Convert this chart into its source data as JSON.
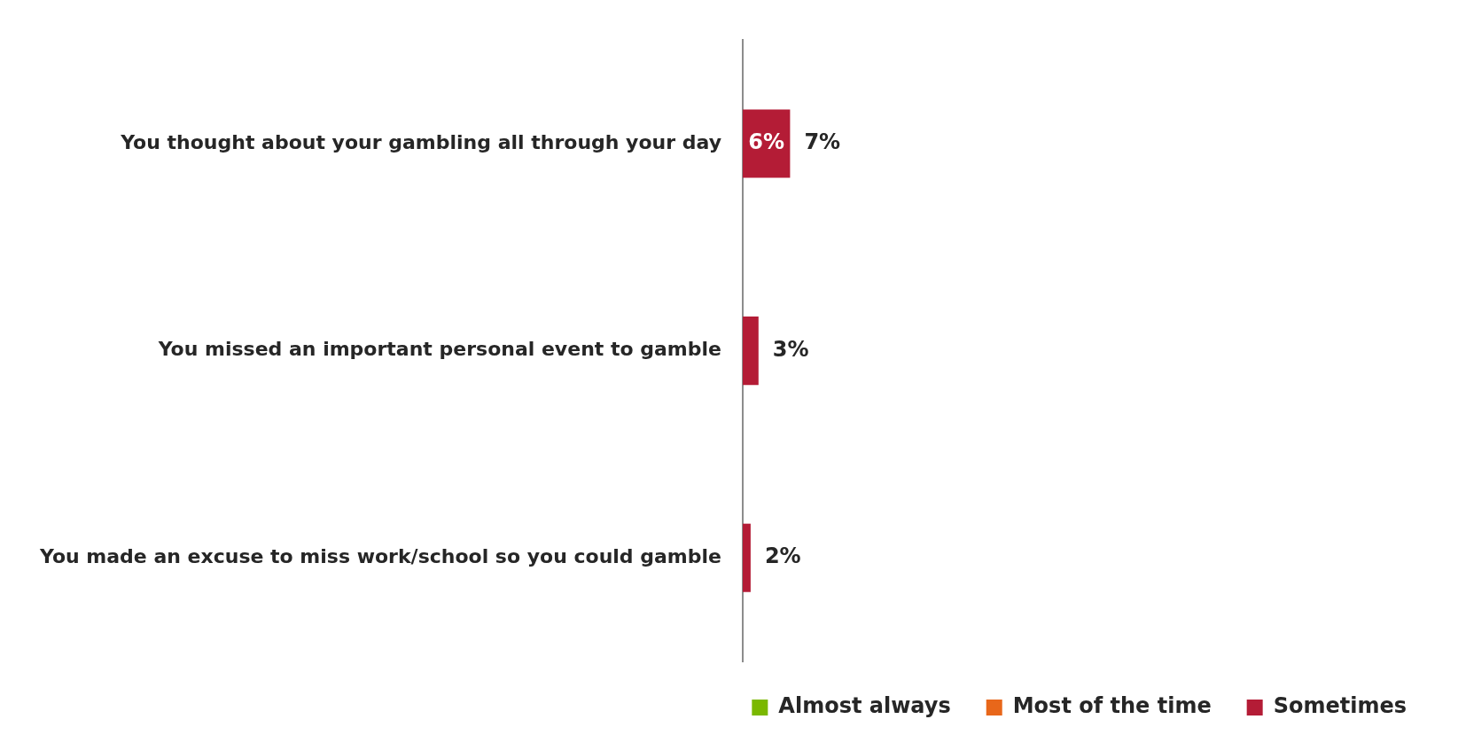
{
  "chart_data": {
    "type": "bar",
    "orientation": "horizontal",
    "stacked": true,
    "categories": [
      "You thought about your gambling all through your day",
      "You missed an important personal event to gamble",
      "You made an excuse to miss work/school so you could gamble"
    ],
    "series": [
      {
        "name": "Almost always",
        "color": "#7ab800",
        "values": [
          0,
          0,
          0
        ]
      },
      {
        "name": "Most of the time",
        "color": "#e8671a",
        "values": [
          0,
          0,
          0
        ]
      },
      {
        "name": "Sometimes",
        "color": "#b41c36",
        "values": [
          6,
          2,
          1
        ],
        "value_labels": [
          "6%",
          null,
          null
        ]
      }
    ],
    "totals": [
      "7%",
      "3%",
      "2%"
    ],
    "tick_labels": "y",
    "legend": "bottom right"
  }
}
